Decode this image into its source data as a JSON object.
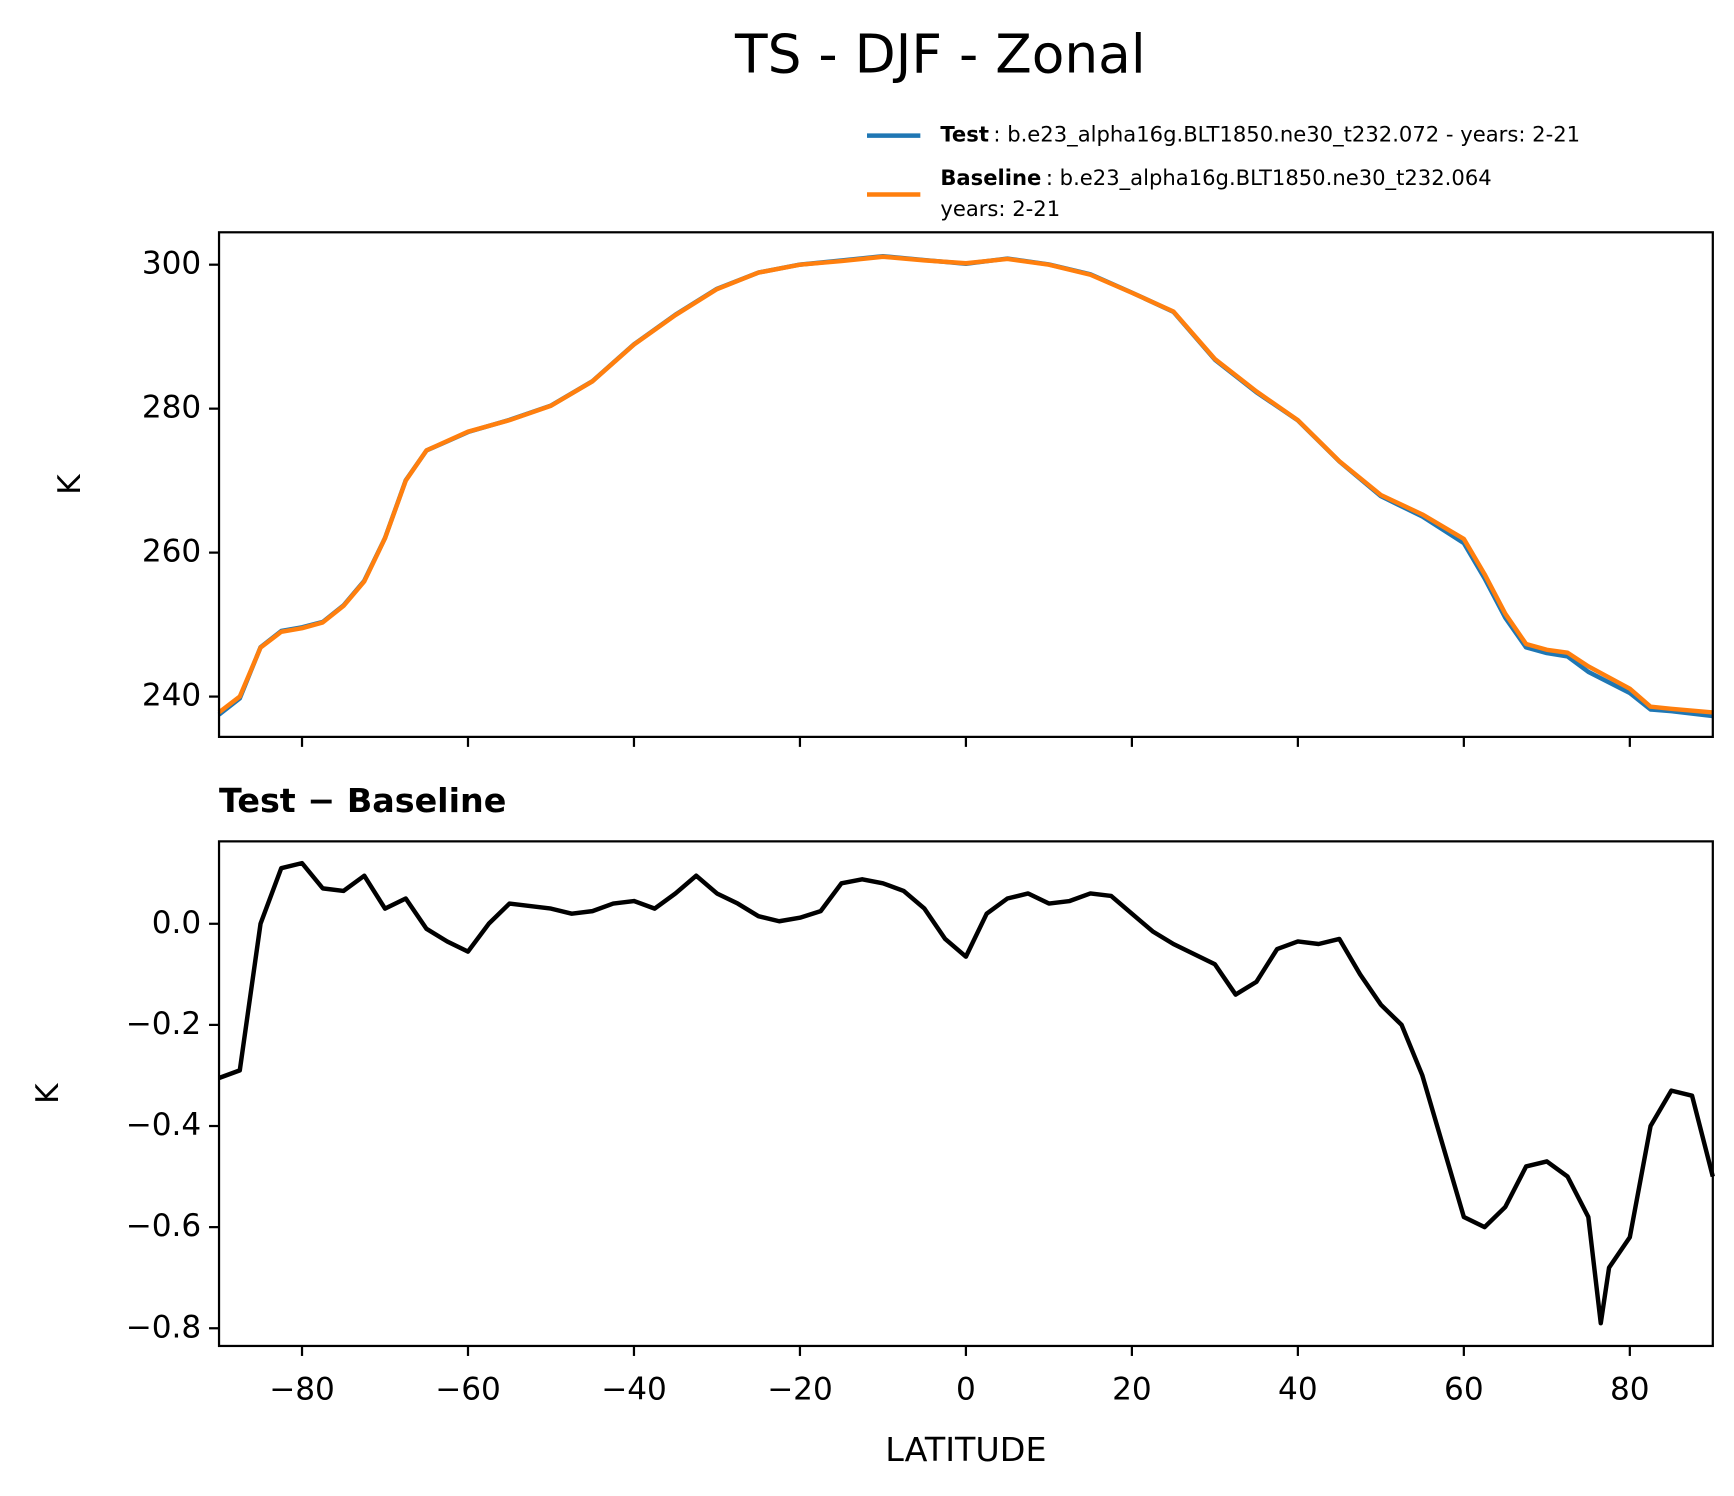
{
  "title": "TS - DJF - Zonal",
  "chart_data": [
    {
      "type": "line",
      "ylabel": "K",
      "x": [
        -90,
        -87.5,
        -85,
        -82.5,
        -80,
        -77.5,
        -75,
        -72.5,
        -70,
        -67.5,
        -65,
        -62.5,
        -60,
        -55,
        -50,
        -45,
        -40,
        -35,
        -30,
        -25,
        -20,
        -15,
        -10,
        -5,
        0,
        5,
        10,
        15,
        20,
        25,
        30,
        35,
        40,
        45,
        50,
        55,
        60,
        62.5,
        65,
        67.5,
        70,
        72.5,
        75,
        80,
        82.5,
        85,
        90
      ],
      "series": [
        {
          "name": "Test",
          "description": [
            ": b.e23_alpha16g.BLT1850.ne30_t232.072 - years: 2-21"
          ],
          "color": "#1f77b4",
          "values": [
            237.5,
            239.75,
            246.85,
            249.11,
            249.62,
            250.37,
            252.67,
            256.09,
            262.03,
            270.05,
            274.19,
            275.45,
            276.75,
            278.44,
            280.43,
            283.82,
            288.94,
            293.06,
            296.65,
            298.91,
            300.01,
            300.58,
            301.18,
            300.64,
            300.13,
            300.85,
            300.04,
            298.66,
            296.12,
            293.45,
            286.8,
            282.28,
            278.37,
            272.67,
            267.84,
            265.01,
            261.32,
            256.42,
            250.94,
            246.83,
            246.04,
            245.58,
            243.43,
            240.49,
            238.2,
            237.98,
            237.3
          ]
        },
        {
          "name": "Baseline",
          "description": [
            ": b.e23_alpha16g.BLT1850.ne30_t232.064",
            "years: 2-21"
          ],
          "color": "#ff7f0e",
          "values": [
            237.8,
            240,
            246.8,
            249,
            249.5,
            250.3,
            252.6,
            256,
            262,
            270,
            274.2,
            275.5,
            276.8,
            278.4,
            280.4,
            283.8,
            288.9,
            293,
            296.6,
            298.9,
            300,
            300.5,
            301.1,
            300.6,
            300.2,
            300.8,
            300,
            298.6,
            296.1,
            293.5,
            286.9,
            282.4,
            278.4,
            272.7,
            268,
            265.3,
            261.9,
            257,
            251.5,
            247.3,
            246.5,
            246.1,
            244.2,
            241.1,
            238.6,
            238.3,
            237.8
          ]
        }
      ],
      "xlim": [
        -90,
        90
      ],
      "xticks": [
        -80,
        -60,
        -40,
        -20,
        0,
        20,
        40,
        60,
        80
      ],
      "ylim": [
        234.4,
        304.5
      ],
      "yticks": [
        240,
        260,
        280,
        300
      ],
      "legend": "upper right"
    },
    {
      "type": "line",
      "title": "Test − Baseline",
      "xlabel": "LATITUDE",
      "ylabel": "K",
      "x": [
        -90,
        -87.5,
        -85,
        -82.5,
        -80,
        -77.5,
        -75,
        -72.5,
        -70,
        -67.5,
        -65,
        -62.5,
        -60,
        -57.5,
        -55,
        -52.5,
        -50,
        -47.5,
        -45,
        -42.5,
        -40,
        -37.5,
        -35,
        -32.5,
        -30,
        -27.5,
        -25,
        -22.5,
        -20,
        -17.5,
        -15,
        -12.5,
        -10,
        -7.5,
        -5,
        -2.5,
        0,
        2.5,
        5,
        7.5,
        10,
        12.5,
        15,
        17.5,
        20,
        22.5,
        25,
        27.5,
        30,
        32.5,
        35,
        37.5,
        40,
        42.5,
        45,
        47.5,
        50,
        52.5,
        55,
        57.5,
        60,
        62.5,
        65,
        67.5,
        70,
        72.5,
        75,
        76.5,
        77.5,
        80,
        82.5,
        85,
        87.5,
        90
      ],
      "series": [
        {
          "name": "Test − Baseline",
          "color": "#000000",
          "values": [
            -0.305,
            -0.29,
            0.0,
            0.11,
            0.12,
            0.07,
            0.065,
            0.095,
            0.03,
            0.05,
            -0.01,
            -0.035,
            -0.055,
            0.0,
            0.04,
            0.035,
            0.03,
            0.02,
            0.025,
            0.04,
            0.045,
            0.03,
            0.06,
            0.095,
            0.06,
            0.04,
            0.015,
            0.005,
            0.012,
            0.025,
            0.08,
            0.088,
            0.08,
            0.065,
            0.03,
            -0.03,
            -0.065,
            0.02,
            0.05,
            0.06,
            0.04,
            0.045,
            0.06,
            0.055,
            0.02,
            -0.015,
            -0.04,
            -0.06,
            -0.08,
            -0.14,
            -0.115,
            -0.05,
            -0.035,
            -0.04,
            -0.03,
            -0.1,
            -0.16,
            -0.2,
            -0.3,
            -0.44,
            -0.58,
            -0.6,
            -0.56,
            -0.48,
            -0.47,
            -0.5,
            -0.58,
            -0.79,
            -0.68,
            -0.62,
            -0.4,
            -0.33,
            -0.34,
            -0.5
          ]
        }
      ],
      "xlim": [
        -90,
        90
      ],
      "xticks": [
        {
          "value": -80,
          "label": "−80"
        },
        {
          "value": -60,
          "label": "−60"
        },
        {
          "value": -40,
          "label": "−40"
        },
        {
          "value": -20,
          "label": "−20"
        },
        0,
        20,
        40,
        60,
        80
      ],
      "ylim": [
        -0.835,
        0.163
      ],
      "yticks": [
        {
          "value": 0,
          "label": "0.0"
        },
        {
          "value": -0.2,
          "label": "−0.2"
        },
        {
          "value": -0.4,
          "label": "−0.4"
        },
        {
          "value": -0.6,
          "label": "−0.6"
        },
        {
          "value": -0.8,
          "label": "−0.8"
        }
      ]
    }
  ]
}
